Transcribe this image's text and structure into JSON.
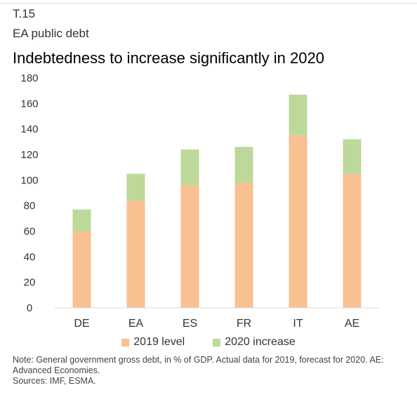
{
  "header": {
    "code": "T.15",
    "subtitle": "EA public debt"
  },
  "footer": {
    "note": "Note: General government gross debt, in % of GDP. Actual data for 2019, forecast for 2020. AE: Advanced Economies.",
    "sources": "Sources: IMF, ESMA."
  },
  "chart_data": {
    "type": "bar",
    "stacked": true,
    "title": "Indebtedness to increase significantly in 2020",
    "categories": [
      "DE",
      "EA",
      "ES",
      "FR",
      "IT",
      "AE"
    ],
    "series": [
      {
        "name": "2019 level",
        "color": "#f9c091",
        "values": [
          60,
          84,
          96,
          98,
          135,
          105
        ]
      },
      {
        "name": "2020 increase",
        "color": "#bcd99a",
        "values": [
          17,
          21,
          28,
          28,
          32,
          27
        ]
      }
    ],
    "y_ticks": [
      "0",
      "20",
      "40",
      "60",
      "80",
      "100",
      "120",
      "140",
      "160",
      "180"
    ],
    "ylim": [
      0,
      180
    ],
    "grid": false,
    "legend_position": "bottom"
  }
}
